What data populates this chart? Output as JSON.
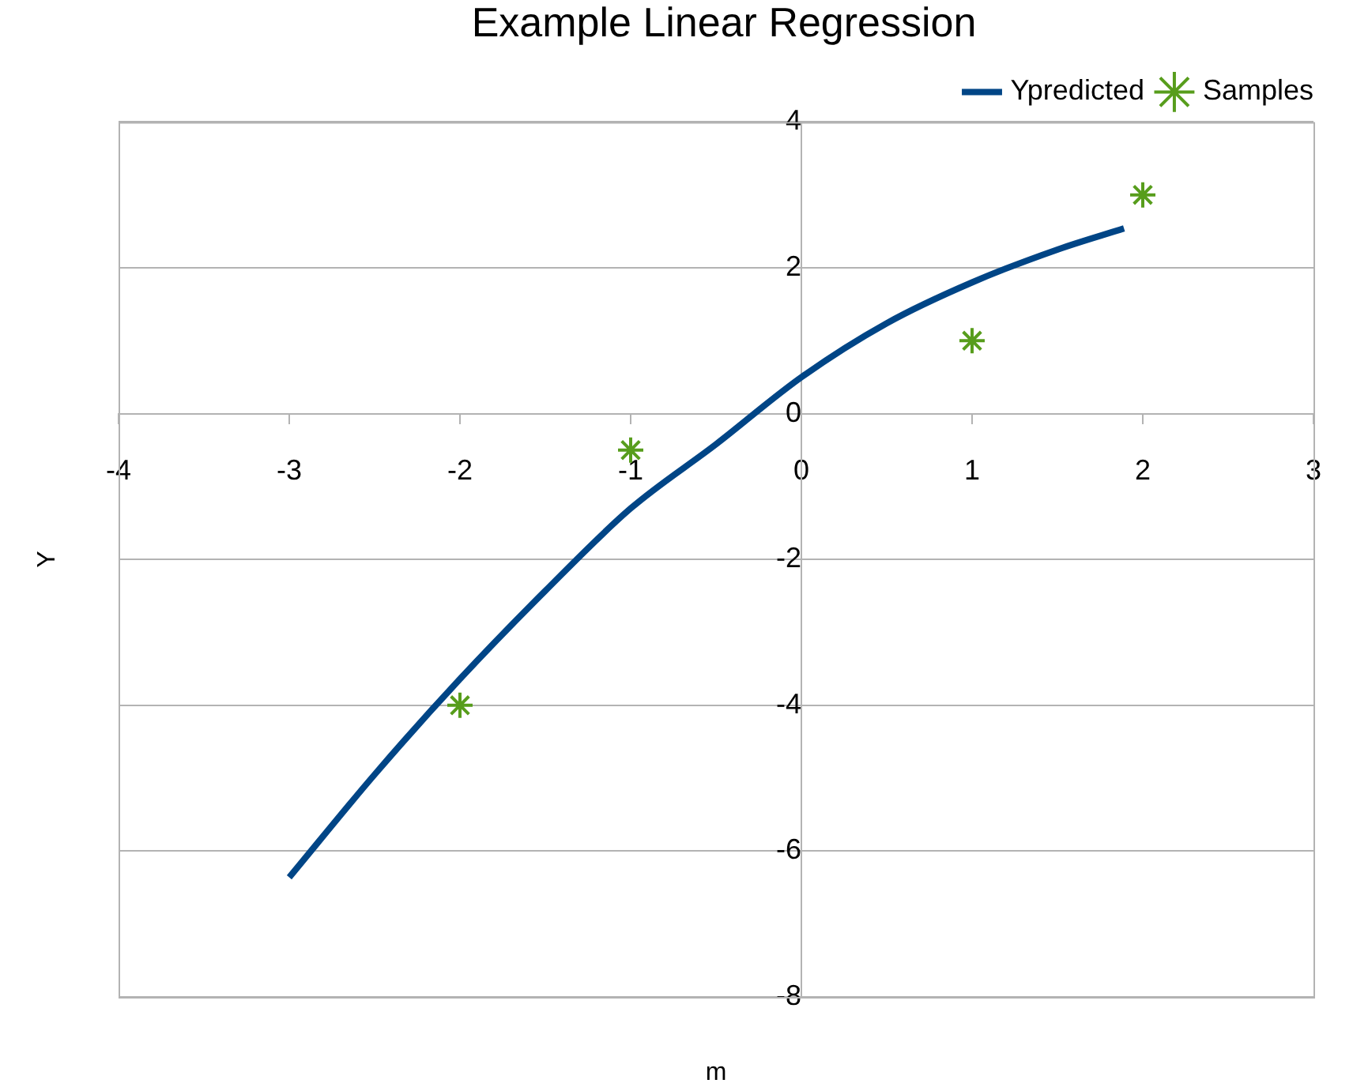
{
  "chart_data": {
    "type": "line",
    "title": "Example Linear Regression",
    "xlabel": "m",
    "ylabel": "Y",
    "xlim": [
      -4,
      3
    ],
    "xticks": [
      -4,
      -3,
      -2,
      -1,
      0,
      1,
      2,
      3
    ],
    "ylim": [
      -8,
      4
    ],
    "yticks": [
      -8,
      -6,
      -4,
      -2,
      0,
      2,
      4
    ],
    "grid": "y",
    "legend": "top right",
    "series": [
      {
        "name": "Ypredicted",
        "type": "line",
        "color": "#004586",
        "marker": "none",
        "x": [
          -3,
          -2.5,
          -2,
          -1.5,
          -1,
          -0.5,
          0,
          0.5,
          1,
          1.5,
          1.89
        ],
        "values": [
          -6.36,
          -4.95,
          -3.64,
          -2.43,
          -1.3,
          -0.42,
          0.5,
          1.24,
          1.8,
          2.25,
          2.54
        ]
      },
      {
        "name": "Samples",
        "type": "scatter",
        "color": "#579d1c",
        "marker": "cross",
        "x": [
          -2,
          -1,
          1,
          2
        ],
        "values": [
          -4,
          -0.5,
          1,
          3
        ]
      }
    ]
  }
}
